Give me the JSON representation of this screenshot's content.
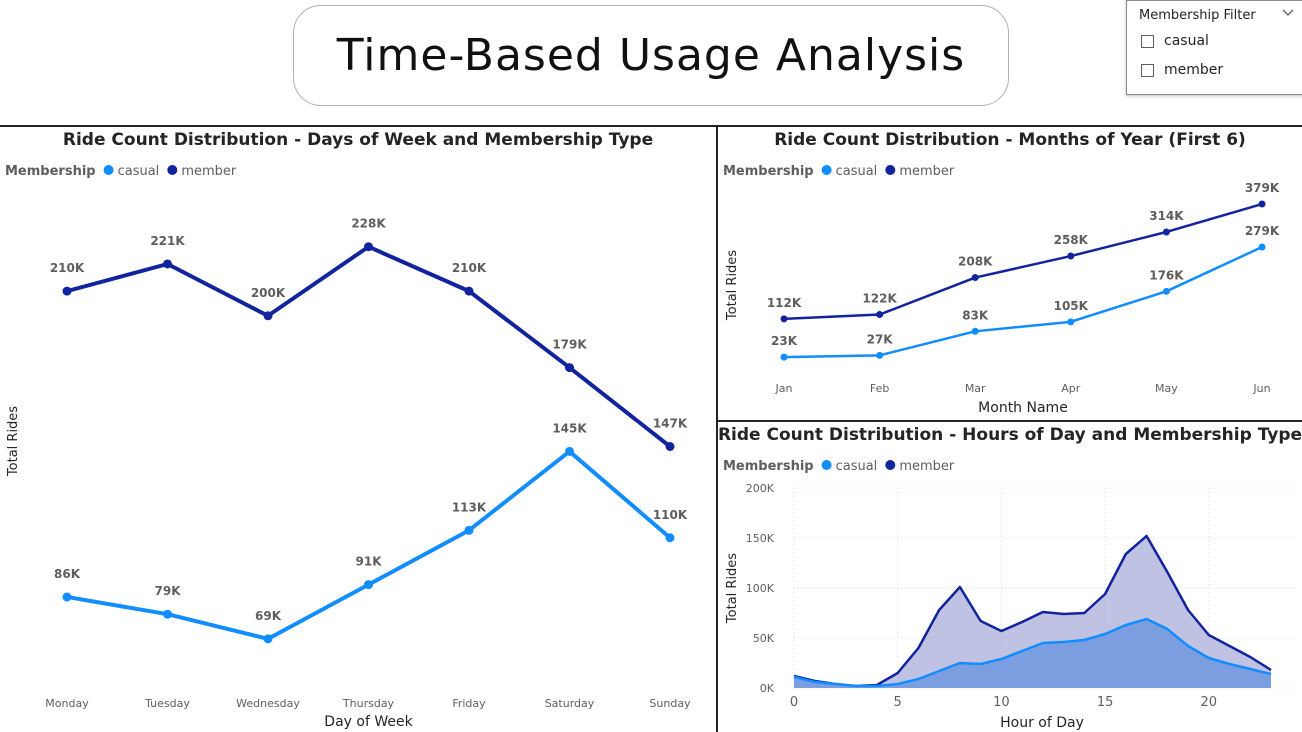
{
  "page_title": "Time-Based Usage Analysis",
  "slicer": {
    "title": "Membership Filter",
    "options": [
      "casual",
      "member"
    ]
  },
  "colors": {
    "casual": "#118dff",
    "member": "#12239e",
    "casual_fill": "#6f98e0",
    "member_fill": "#aaaed8",
    "grid": "#d9d9d9",
    "text": "#605e5c"
  },
  "chart_data": [
    {
      "type": "line",
      "title": "Ride Count Distribution - Days of Week and Membership Type",
      "legend": {
        "title": "Membership",
        "position": "top-left",
        "items": [
          "casual",
          "member"
        ]
      },
      "xlabel": "Day of Week",
      "ylabel": "Total Rides",
      "categories": [
        "Monday",
        "Tuesday",
        "Wednesday",
        "Thursday",
        "Friday",
        "Saturday",
        "Sunday"
      ],
      "series": [
        {
          "name": "casual",
          "values": [
            86000,
            79000,
            69000,
            91000,
            113000,
            145000,
            110000
          ],
          "labels": [
            "86K",
            "79K",
            "69K",
            "91K",
            "113K",
            "145K",
            "110K"
          ]
        },
        {
          "name": "member",
          "values": [
            210000,
            221000,
            200000,
            228000,
            210000,
            179000,
            147000
          ],
          "labels": [
            "210K",
            "221K",
            "200K",
            "228K",
            "210K",
            "179K",
            "147K"
          ]
        }
      ],
      "ylim": [
        58000,
        236000
      ],
      "grid": false
    },
    {
      "type": "line",
      "title": "Ride Count Distribution - Months of Year (First 6)",
      "legend": {
        "title": "Membership",
        "position": "top-left",
        "items": [
          "casual",
          "member"
        ]
      },
      "xlabel": "Month Name",
      "ylabel": "Total Rides",
      "categories": [
        "Jan",
        "Feb",
        "Mar",
        "Apr",
        "May",
        "Jun"
      ],
      "series": [
        {
          "name": "casual",
          "values": [
            23000,
            27000,
            83000,
            105000,
            176000,
            279000
          ],
          "labels": [
            "23K",
            "27K",
            "83K",
            "105K",
            "176K",
            "279K"
          ]
        },
        {
          "name": "member",
          "values": [
            112000,
            122000,
            208000,
            258000,
            314000,
            379000
          ],
          "labels": [
            "112K",
            "122K",
            "208K",
            "258K",
            "314K",
            "379K"
          ]
        }
      ],
      "ylim": [
        0,
        400000
      ],
      "grid": false
    },
    {
      "type": "area",
      "title": "Ride Count Distribution - Hours of Day and Membership Type",
      "legend": {
        "title": "Membership",
        "position": "top-left",
        "items": [
          "casual",
          "member"
        ]
      },
      "xlabel": "Hour of Day",
      "ylabel": "Total Rides",
      "x": [
        0,
        1,
        2,
        3,
        4,
        5,
        6,
        7,
        8,
        9,
        10,
        11,
        12,
        13,
        14,
        15,
        16,
        17,
        18,
        19,
        20,
        21,
        22,
        23
      ],
      "xticks": [
        "0",
        "5",
        "10",
        "15",
        "20"
      ],
      "yticks": [
        "0K",
        "50K",
        "100K",
        "150K",
        "200K"
      ],
      "series": [
        {
          "name": "member",
          "values": [
            12000,
            7000,
            4000,
            2000,
            3000,
            15000,
            40000,
            78000,
            101000,
            67000,
            57000,
            66000,
            76000,
            74000,
            75000,
            94000,
            134000,
            152000,
            116000,
            78000,
            53000,
            42000,
            31000,
            18000
          ]
        },
        {
          "name": "casual",
          "values": [
            11000,
            6000,
            4000,
            2000,
            2000,
            4000,
            9000,
            17000,
            25000,
            24000,
            29000,
            37000,
            45000,
            46000,
            48000,
            54000,
            63000,
            69000,
            59000,
            42000,
            30000,
            24000,
            19000,
            14000
          ]
        }
      ],
      "ylim": [
        0,
        200000
      ],
      "grid": true
    }
  ]
}
